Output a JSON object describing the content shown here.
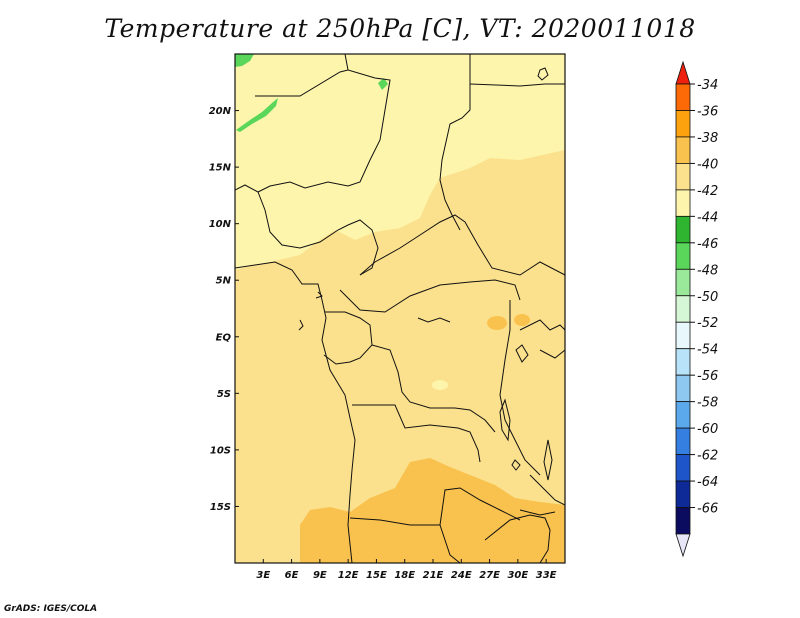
{
  "title": "Temperature at 250hPa [C], VT: 2020011018",
  "footer": "GrADS: IGES/COLA",
  "map": {
    "lon_range": [
      0,
      35
    ],
    "lat_range": [
      -20,
      25
    ],
    "fill_colors": {
      "base": "#fbe18d",
      "light": "#fdf5ac",
      "warm": "#f9c24e",
      "green": "#5ad65a"
    }
  },
  "axes": {
    "x_ticks": [
      {
        "value": 3,
        "label": "3E"
      },
      {
        "value": 6,
        "label": "6E"
      },
      {
        "value": 9,
        "label": "9E"
      },
      {
        "value": 12,
        "label": "12E"
      },
      {
        "value": 15,
        "label": "15E"
      },
      {
        "value": 18,
        "label": "18E"
      },
      {
        "value": 21,
        "label": "21E"
      },
      {
        "value": 24,
        "label": "24E"
      },
      {
        "value": 27,
        "label": "27E"
      },
      {
        "value": 30,
        "label": "30E"
      },
      {
        "value": 33,
        "label": "33E"
      }
    ],
    "y_ticks": [
      {
        "value": 20,
        "label": "20N"
      },
      {
        "value": 15,
        "label": "15N"
      },
      {
        "value": 10,
        "label": "10N"
      },
      {
        "value": 5,
        "label": "5N"
      },
      {
        "value": 0,
        "label": "EQ"
      },
      {
        "value": -5,
        "label": "5S"
      },
      {
        "value": -10,
        "label": "10S"
      },
      {
        "value": -15,
        "label": "15S"
      }
    ]
  },
  "colorbar": {
    "levels": [
      {
        "label": "-34",
        "color": "#f0200e"
      },
      {
        "label": "-36",
        "color": "#fb6a06"
      },
      {
        "label": "-38",
        "color": "#fca20f"
      },
      {
        "label": "-40",
        "color": "#f9c24e"
      },
      {
        "label": "-42",
        "color": "#fbe18d"
      },
      {
        "label": "-44",
        "color": "#fdf5ac"
      },
      {
        "label": "-46",
        "color": "#2fb52f"
      },
      {
        "label": "-48",
        "color": "#5ad65a"
      },
      {
        "label": "-50",
        "color": "#9ae89a"
      },
      {
        "label": "-52",
        "color": "#d6f7d6"
      },
      {
        "label": "-54",
        "color": "#e8f7fc"
      },
      {
        "label": "-56",
        "color": "#b8e2f7"
      },
      {
        "label": "-58",
        "color": "#8ec8f0"
      },
      {
        "label": "-60",
        "color": "#5ba9eb"
      },
      {
        "label": "-62",
        "color": "#347fdf"
      },
      {
        "label": "-64",
        "color": "#1e55c9"
      },
      {
        "label": "-66",
        "color": "#0e2a96"
      },
      {
        "label": "",
        "color": "#0b0b60"
      },
      {
        "label": "",
        "color": "#e6e6f7"
      }
    ]
  }
}
